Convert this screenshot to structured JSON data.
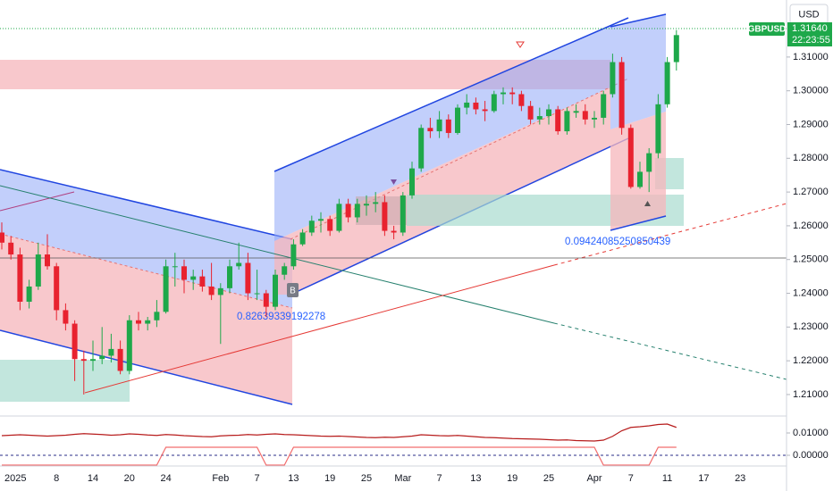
{
  "chart_data": {
    "type": "candlestick",
    "symbol": "GBPUSD",
    "currency": "USD",
    "last_price_label": "1.31640",
    "countdown": "22:23:55",
    "marker": "B",
    "annotations": [
      "0.82639339192278",
      "0.09424085250850439"
    ],
    "up_color": "#1ea84a",
    "down_color": "#e8222f",
    "ylim": [
      1.2039,
      1.3269
    ],
    "yticks": [
      {
        "value": 1.21,
        "label": "1.21000"
      },
      {
        "value": 1.22,
        "label": "1.22000"
      },
      {
        "value": 1.23,
        "label": "1.23000"
      },
      {
        "value": 1.24,
        "label": "1.24000"
      },
      {
        "value": 1.25,
        "label": "1.25000"
      },
      {
        "value": 1.26,
        "label": "1.26000"
      },
      {
        "value": 1.27,
        "label": "1.27000"
      },
      {
        "value": 1.28,
        "label": "1.28000"
      },
      {
        "value": 1.29,
        "label": "1.29000"
      },
      {
        "value": 1.3,
        "label": "1.30000"
      },
      {
        "value": 1.31,
        "label": "1.31000"
      }
    ],
    "xticks": [
      {
        "value": 1.5,
        "label": "2025"
      },
      {
        "value": 6,
        "label": "8"
      },
      {
        "value": 10,
        "label": "14"
      },
      {
        "value": 14,
        "label": "20"
      },
      {
        "value": 18,
        "label": "24"
      },
      {
        "value": 24,
        "label": "Feb"
      },
      {
        "value": 28,
        "label": "7"
      },
      {
        "value": 32,
        "label": "13"
      },
      {
        "value": 36,
        "label": "19"
      },
      {
        "value": 40,
        "label": "25"
      },
      {
        "value": 44,
        "label": "Mar"
      },
      {
        "value": 48,
        "label": "7"
      },
      {
        "value": 52,
        "label": "13"
      },
      {
        "value": 56,
        "label": "19"
      },
      {
        "value": 60,
        "label": "25"
      },
      {
        "value": 65,
        "label": "Apr"
      },
      {
        "value": 69,
        "label": "7"
      },
      {
        "value": 73,
        "label": "11"
      },
      {
        "value": 77,
        "label": "17"
      },
      {
        "value": 81,
        "label": "23"
      }
    ],
    "candles": [
      [
        1.258,
        1.261,
        1.253,
        1.255
      ],
      [
        1.255,
        1.257,
        1.25,
        1.2515
      ],
      [
        1.2515,
        1.2535,
        1.235,
        1.2375
      ],
      [
        1.2375,
        1.244,
        1.2355,
        1.242
      ],
      [
        1.242,
        1.255,
        1.241,
        1.2515
      ],
      [
        1.2515,
        1.2575,
        1.247,
        1.248
      ],
      [
        1.248,
        1.249,
        1.232,
        1.235
      ],
      [
        1.235,
        1.237,
        1.229,
        1.231
      ],
      [
        1.231,
        1.232,
        1.214,
        1.2205
      ],
      [
        1.2205,
        1.223,
        1.21,
        1.22
      ],
      [
        1.22,
        1.226,
        1.217,
        1.2205
      ],
      [
        1.2205,
        1.23,
        1.219,
        1.2215
      ],
      [
        1.2215,
        1.228,
        1.2195,
        1.2235
      ],
      [
        1.2235,
        1.226,
        1.216,
        1.217
      ],
      [
        1.217,
        1.2335,
        1.216,
        1.232
      ],
      [
        1.232,
        1.2345,
        1.229,
        1.231
      ],
      [
        1.231,
        1.233,
        1.229,
        1.232
      ],
      [
        1.232,
        1.238,
        1.23,
        1.2345
      ],
      [
        1.2345,
        1.25,
        1.234,
        1.248
      ],
      [
        1.248,
        1.252,
        1.242,
        1.248
      ],
      [
        1.248,
        1.25,
        1.24,
        1.244
      ],
      [
        1.244,
        1.247,
        1.241,
        1.245
      ],
      [
        1.245,
        1.247,
        1.2405,
        1.242
      ],
      [
        1.242,
        1.249,
        1.238,
        1.2395
      ],
      [
        1.2395,
        1.243,
        1.225,
        1.2415
      ],
      [
        1.2415,
        1.25,
        1.24,
        1.248
      ],
      [
        1.248,
        1.255,
        1.247,
        1.249
      ],
      [
        1.249,
        1.252,
        1.238,
        1.24
      ],
      [
        1.24,
        1.247,
        1.238,
        1.24
      ],
      [
        1.24,
        1.241,
        1.233,
        1.236
      ],
      [
        1.236,
        1.247,
        1.235,
        1.2455
      ],
      [
        1.2455,
        1.249,
        1.244,
        1.248
      ],
      [
        1.248,
        1.256,
        1.247,
        1.2545
      ],
      [
        1.2545,
        1.259,
        1.254,
        1.258
      ],
      [
        1.258,
        1.263,
        1.257,
        1.2615
      ],
      [
        1.2615,
        1.264,
        1.258,
        1.262
      ],
      [
        1.262,
        1.263,
        1.257,
        1.2585
      ],
      [
        1.2585,
        1.268,
        1.258,
        1.2665
      ],
      [
        1.2665,
        1.268,
        1.261,
        1.2625
      ],
      [
        1.2625,
        1.268,
        1.261,
        1.2665
      ],
      [
        1.266,
        1.269,
        1.263,
        1.2665
      ],
      [
        1.2665,
        1.27,
        1.264,
        1.267
      ],
      [
        1.267,
        1.269,
        1.257,
        1.2585
      ],
      [
        1.2585,
        1.26,
        1.256,
        1.258
      ],
      [
        1.258,
        1.27,
        1.257,
        1.269
      ],
      [
        1.269,
        1.279,
        1.268,
        1.277
      ],
      [
        1.277,
        1.29,
        1.276,
        1.289
      ],
      [
        1.289,
        1.292,
        1.286,
        1.288
      ],
      [
        1.288,
        1.294,
        1.286,
        1.2915
      ],
      [
        1.2915,
        1.293,
        1.286,
        1.2875
      ],
      [
        1.2875,
        1.296,
        1.287,
        1.295
      ],
      [
        1.295,
        1.299,
        1.293,
        1.2965
      ],
      [
        1.2965,
        1.298,
        1.293,
        1.2945
      ],
      [
        1.2945,
        1.297,
        1.291,
        1.294
      ],
      [
        1.294,
        1.3,
        1.2935,
        1.299
      ],
      [
        1.299,
        1.301,
        1.296,
        1.2995
      ],
      [
        1.2995,
        1.301,
        1.296,
        1.299
      ],
      [
        1.299,
        1.3,
        1.294,
        1.2955
      ],
      [
        1.2955,
        1.297,
        1.29,
        1.2915
      ],
      [
        1.2915,
        1.295,
        1.29,
        1.2925
      ],
      [
        1.2925,
        1.296,
        1.29,
        1.2945
      ],
      [
        1.2945,
        1.2955,
        1.287,
        1.288
      ],
      [
        1.288,
        1.295,
        1.287,
        1.294
      ],
      [
        1.2935,
        1.296,
        1.292,
        1.294
      ],
      [
        1.294,
        1.296,
        1.29,
        1.2915
      ],
      [
        1.2915,
        1.294,
        1.289,
        1.292
      ],
      [
        1.292,
        1.3,
        1.29,
        1.299
      ],
      [
        1.299,
        1.311,
        1.298,
        1.3085
      ],
      [
        1.3085,
        1.31,
        1.287,
        1.289
      ],
      [
        1.289,
        1.29,
        1.271,
        1.2715
      ],
      [
        1.2715,
        1.279,
        1.271,
        1.276
      ],
      [
        1.276,
        1.283,
        1.27,
        1.2815
      ],
      [
        1.2815,
        1.299,
        1.28,
        1.296
      ],
      [
        1.296,
        1.31,
        1.295,
        1.3085
      ],
      [
        1.3085,
        1.318,
        1.306,
        1.3165
      ]
    ],
    "indicator": {
      "ylim": [
        -0.0052,
        0.0176
      ],
      "yticks": [
        {
          "value": 0,
          "label": "0.00000"
        },
        {
          "value": 0.01,
          "label": "0.01000"
        }
      ],
      "series": [
        {
          "color": "#b71c1c",
          "values": [
            0.0088,
            0.009,
            0.0092,
            0.009,
            0.0088,
            0.0086,
            0.0088,
            0.009,
            0.0094,
            0.0097,
            0.0095,
            0.0093,
            0.009,
            0.0092,
            0.0096,
            0.0094,
            0.0091,
            0.0089,
            0.0093,
            0.0091,
            0.0088,
            0.0086,
            0.0084,
            0.0083,
            0.0087,
            0.0089,
            0.009,
            0.0093,
            0.0091,
            0.0094,
            0.0096,
            0.0093,
            0.0092,
            0.009,
            0.0088,
            0.0086,
            0.0085,
            0.0086,
            0.0084,
            0.0082,
            0.008,
            0.0079,
            0.0081,
            0.008,
            0.0083,
            0.0086,
            0.0092,
            0.009,
            0.0088,
            0.0087,
            0.0089,
            0.0086,
            0.0083,
            0.008,
            0.0079,
            0.0077,
            0.0075,
            0.0074,
            0.0073,
            0.0072,
            0.007,
            0.0068,
            0.0069,
            0.0066,
            0.0065,
            0.0064,
            0.0068,
            0.0085,
            0.011,
            0.0125,
            0.0128,
            0.0132,
            0.0138,
            0.014,
            0.0125
          ]
        },
        {
          "color": "#f26d6d",
          "values": [
            -0.0044,
            -0.0044,
            -0.0044,
            -0.0044,
            -0.0044,
            -0.0044,
            -0.0044,
            -0.0044,
            -0.0044,
            -0.0044,
            -0.0044,
            -0.0044,
            -0.0044,
            -0.0044,
            -0.0044,
            -0.0044,
            -0.0044,
            -0.0044,
            0.0036,
            0.0036,
            0.0036,
            0.0036,
            0.0036,
            0.0036,
            0.0036,
            0.0036,
            0.0036,
            0.0036,
            0.0036,
            -0.0044,
            -0.0044,
            -0.0044,
            0.0036,
            0.0036,
            0.0036,
            0.0036,
            0.0036,
            0.0036,
            0.0036,
            0.0036,
            0.0036,
            0.0036,
            0.0036,
            0.0036,
            0.0036,
            0.0036,
            0.0036,
            0.0036,
            0.0036,
            0.0036,
            0.0036,
            0.0036,
            0.0036,
            0.0036,
            0.0036,
            0.0036,
            0.0036,
            0.0036,
            0.0036,
            0.0036,
            0.0036,
            0.0036,
            0.0036,
            0.0036,
            0.0036,
            0.0036,
            -0.0044,
            -0.0044,
            -0.0044,
            -0.0044,
            -0.0044,
            -0.0044,
            0.0036,
            0.0036,
            0.0036
          ]
        }
      ]
    }
  }
}
